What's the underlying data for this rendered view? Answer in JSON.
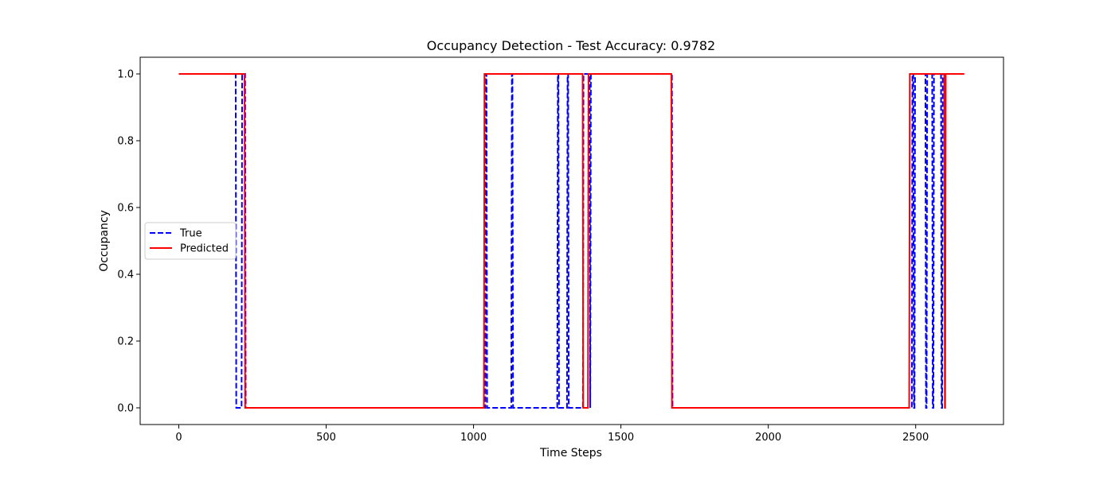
{
  "chart_data": {
    "type": "line",
    "title": "Occupancy Detection - Test Accuracy: 0.9782",
    "xlabel": "Time Steps",
    "ylabel": "Occupancy",
    "xlim": [
      -131,
      2798
    ],
    "ylim": [
      -0.05,
      1.05
    ],
    "xticks": [
      0,
      500,
      1000,
      1500,
      2000,
      2500
    ],
    "yticks": [
      0.0,
      0.2,
      0.4,
      0.6,
      0.8,
      1.0
    ],
    "xtick_labels": [
      "0",
      "500",
      "1000",
      "1500",
      "2000",
      "2500"
    ],
    "ytick_labels": [
      "0.0",
      "0.2",
      "0.4",
      "0.6",
      "0.8",
      "1.0"
    ],
    "grid": false,
    "legend_position": "center-left",
    "series": [
      {
        "name": "True",
        "color": "#0000ff",
        "dash": "dashed",
        "x": [
          0,
          193,
          195,
          213,
          215,
          225,
          227,
          1040,
          1042,
          1044,
          1046,
          1128,
          1130,
          1132,
          1134,
          1284,
          1286,
          1288,
          1290,
          1317,
          1319,
          1321,
          1323,
          1371,
          1373,
          1394,
          1396,
          1396,
          1398,
          1673,
          1675,
          2487,
          2489,
          2492,
          2494,
          2496,
          2498,
          2533,
          2535,
          2537,
          2539,
          2556,
          2558,
          2560,
          2562,
          2586,
          2588,
          2590,
          2592,
          2665
        ],
        "y": [
          1,
          1,
          0,
          0,
          1,
          1,
          0,
          0,
          1,
          1,
          0,
          0,
          1,
          1,
          0,
          0,
          1,
          1,
          0,
          0,
          1,
          1,
          0,
          0,
          1,
          1,
          0,
          0,
          1,
          1,
          0,
          0,
          1,
          1,
          0,
          0,
          1,
          1,
          0,
          0,
          1,
          1,
          0,
          0,
          1,
          1,
          0,
          0,
          1,
          1
        ]
      },
      {
        "name": "Predicted",
        "color": "#ff0000",
        "dash": "solid",
        "x": [
          0,
          223,
          225,
          1035,
          1037,
          1370,
          1372,
          1388,
          1390,
          1671,
          1673,
          2478,
          2480,
          2597,
          2599,
          2600,
          2602,
          2665
        ],
        "y": [
          1,
          1,
          0,
          0,
          1,
          1,
          0,
          0,
          1,
          1,
          0,
          0,
          1,
          1,
          0,
          0,
          1,
          1
        ]
      }
    ]
  }
}
